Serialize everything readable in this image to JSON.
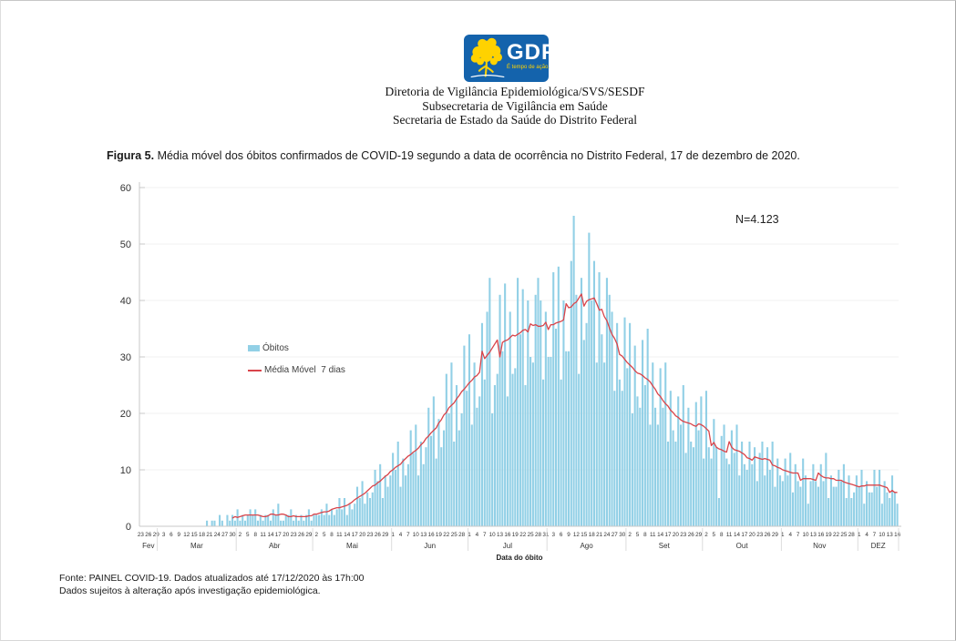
{
  "logo": {
    "text": "GDF",
    "tagline": "É tempo de ação.",
    "bg_color": "#1463ac",
    "tree_color": "#ffd200"
  },
  "header": {
    "lines": [
      "Diretoria de Vigilância Epidemiológica/SVS/SESDF",
      "Subsecretaria de Vigilância em Saúde",
      "Secretaria de Estado da Saúde do Distrito Federal"
    ]
  },
  "figure": {
    "label": "Figura 5.",
    "caption": " Média móvel dos óbitos confirmados de COVID-19 segundo a data de ocorrência no Distrito Federal, 17 de dezembro de 2020."
  },
  "chart_data": {
    "type": "bar",
    "title": "",
    "n_label": "N=4.123",
    "xlabel": "Data do óbito",
    "ylabel": "",
    "ylim": [
      0,
      60
    ],
    "yticks": [
      0,
      10,
      20,
      30,
      40,
      50,
      60
    ],
    "grid": "faint horizontal",
    "legend_position": "inside-left",
    "legend": [
      {
        "label": "Óbitos",
        "color": "#92d0e6",
        "type": "bar"
      },
      {
        "label": "Média Móvel  7 dias",
        "color": "#d9444a",
        "type": "line"
      }
    ],
    "axis_color": "#c9c9c9",
    "start_date": "23/02/2020",
    "end_date": "16/12/2020",
    "tick_interval_days": 3,
    "x_tick_labels": [
      23,
      26,
      29,
      3,
      6,
      9,
      12,
      15,
      18,
      21,
      24,
      27,
      30,
      2,
      5,
      8,
      11,
      14,
      17,
      20,
      23,
      26,
      29,
      2,
      5,
      8,
      11,
      14,
      17,
      20,
      23,
      26,
      29,
      1,
      4,
      7,
      10,
      13,
      16,
      19,
      22,
      25,
      28,
      1,
      4,
      7,
      10,
      13,
      16,
      19,
      22,
      25,
      28,
      31,
      3,
      6,
      9,
      12,
      15,
      18,
      21,
      24,
      27,
      30,
      2,
      5,
      8,
      11,
      14,
      17,
      20,
      23,
      26,
      29,
      2,
      5,
      8,
      11,
      14,
      17,
      20,
      23,
      26,
      29,
      1,
      4,
      7,
      10,
      13,
      16,
      19,
      22,
      25,
      28,
      1,
      4,
      7,
      10,
      13,
      16
    ],
    "months": [
      {
        "label": "Fev",
        "start_day": 0,
        "end_day": 6
      },
      {
        "label": "Mar",
        "start_day": 7,
        "end_day": 37
      },
      {
        "label": "Abr",
        "start_day": 38,
        "end_day": 67
      },
      {
        "label": "Mai",
        "start_day": 68,
        "end_day": 98
      },
      {
        "label": "Jun",
        "start_day": 99,
        "end_day": 128
      },
      {
        "label": "Jul",
        "start_day": 129,
        "end_day": 159
      },
      {
        "label": "Ago",
        "start_day": 160,
        "end_day": 190
      },
      {
        "label": "Set",
        "start_day": 191,
        "end_day": 220
      },
      {
        "label": "Out",
        "start_day": 221,
        "end_day": 251
      },
      {
        "label": "Nov",
        "start_day": 252,
        "end_day": 281
      },
      {
        "label": "DEZ",
        "start_day": 282,
        "end_day": 297
      }
    ],
    "series": [
      {
        "name": "Óbitos",
        "type": "bar",
        "color": "#92d0e6",
        "values": [
          0,
          0,
          0,
          0,
          0,
          0,
          0,
          0,
          0,
          0,
          0,
          0,
          0,
          0,
          0,
          0,
          0,
          0,
          0,
          0,
          0,
          0,
          0,
          0,
          0,
          0,
          1,
          0,
          1,
          1,
          0,
          2,
          1,
          0,
          2,
          1,
          2,
          1,
          3,
          1,
          2,
          1,
          2,
          3,
          2,
          3,
          1,
          2,
          1,
          2,
          2,
          1,
          3,
          2,
          4,
          1,
          1,
          2,
          2,
          3,
          1,
          2,
          1,
          2,
          1,
          2,
          3,
          1,
          2,
          2,
          2,
          3,
          2,
          4,
          2,
          3,
          2,
          3,
          5,
          3,
          5,
          2,
          4,
          3,
          4,
          7,
          5,
          8,
          4,
          6,
          5,
          6,
          10,
          8,
          11,
          5,
          9,
          7,
          9,
          13,
          10,
          15,
          7,
          12,
          9,
          11,
          17,
          13,
          18,
          9,
          15,
          11,
          14,
          21,
          16,
          23,
          12,
          19,
          14,
          17,
          27,
          20,
          29,
          15,
          25,
          17,
          20,
          32,
          24,
          34,
          18,
          29,
          21,
          23,
          36,
          26,
          38,
          44,
          20,
          25,
          27,
          41,
          31,
          43,
          23,
          38,
          27,
          28,
          44,
          34,
          42,
          25,
          40,
          30,
          29,
          41,
          44,
          40,
          26,
          38,
          30,
          30,
          45,
          35,
          46,
          26,
          40,
          31,
          31,
          47,
          55,
          41,
          27,
          44,
          33,
          36,
          52,
          40,
          47,
          29,
          45,
          34,
          29,
          44,
          41,
          38,
          24,
          36,
          26,
          24,
          37,
          28,
          36,
          20,
          32,
          23,
          21,
          33,
          25,
          35,
          18,
          29,
          21,
          18,
          28,
          21,
          29,
          15,
          24,
          17,
          15,
          23,
          18,
          25,
          13,
          21,
          15,
          14,
          22,
          17,
          23,
          12,
          24,
          14,
          12,
          19,
          14,
          5,
          16,
          18,
          12,
          11,
          17,
          13,
          18,
          9,
          15,
          11,
          10,
          15,
          11,
          14,
          8,
          13,
          15,
          9,
          14,
          10,
          15,
          7,
          12,
          9,
          8,
          12,
          9,
          13,
          6,
          11,
          8,
          7,
          12,
          9,
          4,
          8,
          11,
          8,
          7,
          11,
          8,
          13,
          5,
          9,
          7,
          7,
          10,
          8,
          11,
          5,
          9,
          5,
          6,
          9,
          7,
          10,
          4,
          8,
          6,
          6,
          10,
          7,
          10,
          4,
          8,
          6,
          5,
          9,
          6,
          4
        ]
      },
      {
        "name": "Média Móvel  7 dias",
        "type": "line",
        "color": "#d9444a",
        "derived": "7-day moving average of Óbitos",
        "window": 7,
        "start_day": 36
      }
    ]
  },
  "footer": {
    "lines": [
      "Fonte: PAINEL COVID-19. Dados atualizados até 17/12/2020 às 17h:00",
      "Dados sujeitos à alteração após investigação epidemiológica."
    ]
  }
}
